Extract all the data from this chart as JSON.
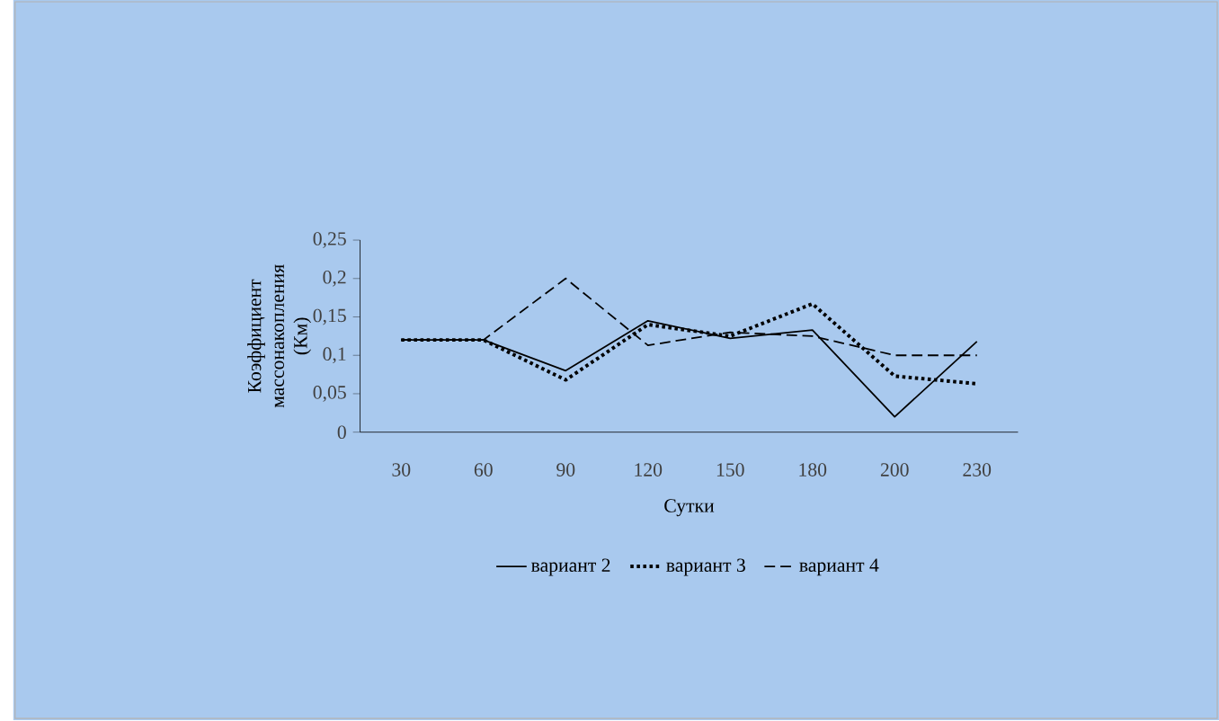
{
  "chart_data": {
    "type": "line",
    "xlabel": "Сутки",
    "ylabel": "Коэффициент массонакопления (Км)",
    "categories": [
      "30",
      "60",
      "90",
      "120",
      "150",
      "180",
      "200",
      "230"
    ],
    "ylim": [
      0,
      0.25
    ],
    "yticks": [
      0,
      {
        "value": 0.05,
        "label": "0,05"
      },
      {
        "value": 0.1,
        "label": "0,1"
      },
      {
        "value": 0.15,
        "label": "0,15"
      },
      {
        "value": 0.2,
        "label": "0,2"
      },
      {
        "value": 0.25,
        "label": "0,25"
      }
    ],
    "grid": false,
    "legend": "bottom",
    "marker": "none",
    "series": [
      {
        "name": "вариант 2",
        "color": "#000000",
        "line_style": "solid",
        "values": [
          0.12,
          0.12,
          0.08,
          0.145,
          0.122,
          0.133,
          0.02,
          0.118
        ]
      },
      {
        "name": "вариант 3",
        "color": "#000000",
        "line_style": "dotted",
        "values": [
          0.12,
          0.12,
          0.068,
          0.14,
          0.125,
          0.167,
          0.073,
          0.063
        ]
      },
      {
        "name": "вариант 4",
        "color": "#000000",
        "line_style": "dashed",
        "values": [
          0.12,
          0.12,
          0.2,
          0.113,
          0.13,
          0.125,
          0.1,
          0.1
        ]
      }
    ]
  }
}
